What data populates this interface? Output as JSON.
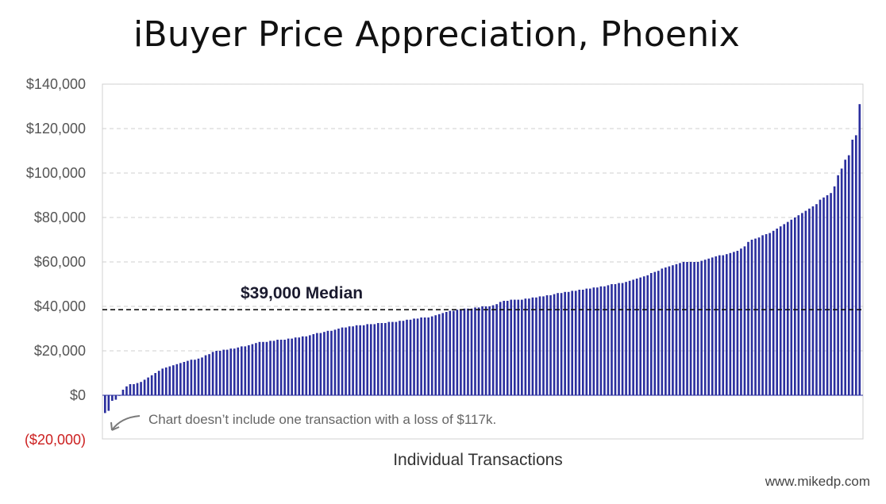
{
  "chart_data": {
    "type": "bar",
    "title": "iBuyer Price Appreciation, Phoenix",
    "xlabel": "Individual Transactions",
    "ylabel": "",
    "ylim": [
      -20000,
      140000
    ],
    "yticks": [
      -20000,
      0,
      20000,
      40000,
      60000,
      80000,
      100000,
      120000,
      140000
    ],
    "ytick_labels": [
      "($20,000)",
      "$0",
      "$20,000",
      "$40,000",
      "$60,000",
      "$80,000",
      "$100,000",
      "$120,000",
      "$140,000"
    ],
    "grid": true,
    "bar_color": "#2b2f9e",
    "negative_tick_color": "#cc2020",
    "median": {
      "value": 38500,
      "label": "$39,000 Median"
    },
    "annotation": "Chart doesn’t include one transaction with a loss of $117k.",
    "values": [
      -8000,
      -7000,
      -2500,
      -2000,
      0,
      2500,
      4000,
      5000,
      5000,
      5500,
      6000,
      7000,
      8000,
      9000,
      10000,
      11000,
      12000,
      12500,
      13000,
      13500,
      14000,
      14500,
      15000,
      15500,
      16000,
      16000,
      16500,
      17000,
      18000,
      18500,
      19500,
      20000,
      20000,
      20500,
      20500,
      21000,
      21000,
      21500,
      22000,
      22000,
      22500,
      23000,
      23500,
      24000,
      24000,
      24000,
      24500,
      24500,
      25000,
      25000,
      25000,
      25500,
      25500,
      26000,
      26000,
      26500,
      26500,
      27000,
      27500,
      28000,
      28000,
      28500,
      29000,
      29000,
      29500,
      30000,
      30500,
      30500,
      31000,
      31000,
      31500,
      31500,
      31500,
      32000,
      32000,
      32000,
      32500,
      32500,
      32500,
      33000,
      33000,
      33000,
      33500,
      33500,
      34000,
      34000,
      34500,
      34500,
      35000,
      35000,
      35000,
      35500,
      36000,
      36500,
      37000,
      37500,
      38000,
      38000,
      38500,
      38500,
      39000,
      39000,
      39000,
      39500,
      39500,
      40000,
      40000,
      40000,
      40500,
      41000,
      42000,
      42500,
      42500,
      43000,
      43000,
      43000,
      43000,
      43500,
      43500,
      44000,
      44000,
      44500,
      44500,
      45000,
      45000,
      45500,
      46000,
      46000,
      46500,
      46500,
      47000,
      47000,
      47500,
      47500,
      48000,
      48000,
      48500,
      48500,
      49000,
      49000,
      49500,
      50000,
      50000,
      50500,
      50500,
      51000,
      51500,
      52000,
      52500,
      53000,
      53500,
      54000,
      55000,
      55500,
      56000,
      57000,
      57500,
      58000,
      58500,
      59000,
      59500,
      60000,
      60000,
      60000,
      60000,
      60000,
      60500,
      61000,
      61500,
      62000,
      62500,
      63000,
      63000,
      63500,
      64000,
      64500,
      65000,
      66000,
      67000,
      69000,
      70000,
      70500,
      71000,
      72000,
      72500,
      73000,
      74000,
      75000,
      76000,
      77000,
      78000,
      79000,
      80000,
      81000,
      82000,
      83000,
      84000,
      85000,
      86000,
      88000,
      89000,
      90000,
      91000,
      94000,
      99000,
      102000,
      106000,
      108000,
      115000,
      117000,
      131000
    ],
    "source": "www.mikedp.com"
  }
}
